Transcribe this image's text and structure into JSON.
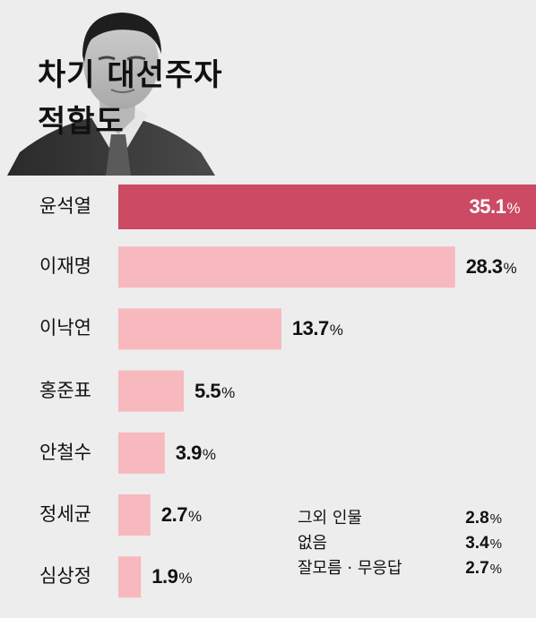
{
  "title_line1": "차기 대선주자",
  "title_line2": "적합도",
  "colors": {
    "background": "#ededed",
    "highlight_bar": "#cc4a63",
    "bar": "#f7b9be"
  },
  "chart_data": {
    "type": "bar",
    "orientation": "horizontal",
    "title": "차기 대선주자 적합도",
    "categories": [
      "윤석열",
      "이재명",
      "이낙연",
      "홍준표",
      "안철수",
      "정세균",
      "심상정"
    ],
    "values": [
      35.1,
      28.3,
      13.7,
      5.5,
      3.9,
      2.7,
      1.9
    ],
    "value_labels": [
      "35.1",
      "28.3",
      "13.7",
      "5.5",
      "3.9",
      "2.7",
      "1.9"
    ],
    "unit": "%",
    "highlight_index": 0,
    "others": [
      {
        "label": "그외 인물",
        "value": 2.8,
        "value_label": "2.8"
      },
      {
        "label": "없음",
        "value": 3.4,
        "value_label": "3.4"
      },
      {
        "label": "잘모름 · 무응답",
        "value": 2.7,
        "value_label": "2.7"
      }
    ]
  }
}
